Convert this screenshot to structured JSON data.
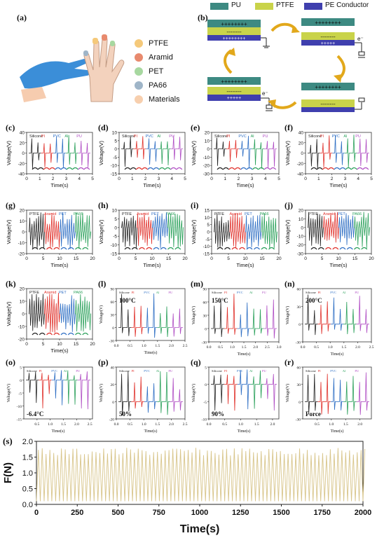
{
  "panel_letters": [
    "(a)",
    "(b)",
    "(c)",
    "(d)",
    "(e)",
    "(f)",
    "(g)",
    "(h)",
    "(i)",
    "(j)",
    "(k)",
    "(l)",
    "(m)",
    "(n)",
    "(o)",
    "(p)",
    "(q)",
    "(r)",
    "(s)"
  ],
  "legend_a": {
    "items": [
      {
        "label": "PTFE",
        "color": "#f5c97a"
      },
      {
        "label": "Aramid",
        "color": "#e88a6e"
      },
      {
        "label": "PET",
        "color": "#a7d8a0"
      },
      {
        "label": "PA66",
        "color": "#9fb5c8"
      },
      {
        "label": "Materials",
        "color": "#f7cfae"
      }
    ]
  },
  "legend_b": {
    "items": [
      {
        "label": "PU",
        "color": "#3d8a82"
      },
      {
        "label": "PTFE",
        "color": "#c9d34a"
      },
      {
        "label": "PE Conductor",
        "color": "#3f3fae"
      }
    ],
    "charges_top": "++++++++",
    "charges_mid": "--------",
    "charges_bot": "+++++",
    "electron": "e⁻"
  },
  "colors": {
    "black": "#222222",
    "red": "#e0302a",
    "blue": "#2f6fc4",
    "green": "#2aa05a",
    "purple": "#b04ec4",
    "force": "#d8c58a"
  },
  "common": {
    "xlabel": "Time(s)",
    "ylabel": "Voltage(V)",
    "fylabel": "F(N)",
    "fxlabel": "Time(s)"
  },
  "chart_data": [
    {
      "id": "c",
      "type": "line",
      "legend": [
        "Silicone",
        "PI",
        "PVC",
        "Al",
        "PU"
      ],
      "xticks": [
        "0",
        "1",
        "2",
        "3",
        "4",
        "5"
      ],
      "yticks": [
        "40",
        "20",
        "0",
        "-20",
        "-40"
      ],
      "xlim": [
        0,
        5
      ],
      "ylim": [
        -40,
        40
      ]
    },
    {
      "id": "d",
      "type": "line",
      "legend": [
        "Silicone",
        "PI",
        "PVC",
        "Al",
        "PU"
      ],
      "xticks": [
        "0",
        "1",
        "2",
        "3",
        "4",
        "5"
      ],
      "yticks": [
        "10",
        "5",
        "0",
        "-5",
        "-10",
        "-15"
      ],
      "xlim": [
        0,
        5
      ],
      "ylim": [
        -15,
        10
      ]
    },
    {
      "id": "e",
      "type": "line",
      "legend": [
        "Silicone",
        "PI",
        "PVC",
        "Al",
        "PU"
      ],
      "xticks": [
        "0",
        "1",
        "2",
        "3",
        "4",
        "5"
      ],
      "yticks": [
        "20",
        "10",
        "0",
        "-10",
        "-20",
        "-30"
      ],
      "xlim": [
        0,
        5
      ],
      "ylim": [
        -30,
        20
      ]
    },
    {
      "id": "f",
      "type": "line",
      "legend": [
        "Silicone",
        "PI",
        "PVC",
        "Al",
        "PU"
      ],
      "xticks": [
        "0",
        "1",
        "2",
        "3",
        "4",
        "5"
      ],
      "yticks": [
        "40",
        "20",
        "0",
        "-20",
        "-40"
      ],
      "xlim": [
        0,
        5
      ],
      "ylim": [
        -40,
        40
      ]
    },
    {
      "id": "g",
      "type": "line",
      "legend": [
        "PTFE",
        "Aramid",
        "PET",
        "PA66"
      ],
      "xticks": [
        "0",
        "5",
        "10",
        "15",
        "20"
      ],
      "yticks": [
        "20",
        "10",
        "0",
        "-10",
        "-20"
      ],
      "xlim": [
        0,
        20
      ],
      "ylim": [
        -20,
        20
      ]
    },
    {
      "id": "h",
      "type": "line",
      "legend": [
        "PTFE",
        "Aramid",
        "PET",
        "PA66"
      ],
      "xticks": [
        "0",
        "5",
        "10",
        "15",
        "20"
      ],
      "yticks": [
        "10",
        "5",
        "0",
        "-5",
        "-10",
        "-15"
      ],
      "xlim": [
        0,
        20
      ],
      "ylim": [
        -15,
        10
      ]
    },
    {
      "id": "i",
      "type": "line",
      "legend": [
        "PTFE",
        "Aramid",
        "PET",
        "PA66"
      ],
      "xticks": [
        "0",
        "5",
        "10",
        "15",
        "20"
      ],
      "yticks": [
        "15",
        "10",
        "5",
        "0",
        "-5",
        "-10",
        "-15"
      ],
      "xlim": [
        0,
        20
      ],
      "ylim": [
        -15,
        15
      ]
    },
    {
      "id": "j",
      "type": "line",
      "legend": [
        "PTFE",
        "Aramid",
        "PET",
        "PA66"
      ],
      "xticks": [
        "0",
        "5",
        "10",
        "15",
        "20"
      ],
      "yticks": [
        "20",
        "10",
        "0",
        "-10",
        "-20",
        "-30"
      ],
      "xlim": [
        0,
        20
      ],
      "ylim": [
        -30,
        20
      ]
    },
    {
      "id": "k",
      "type": "line",
      "legend": [
        "PTFE",
        "Aramid",
        "PET",
        "PA66"
      ],
      "xticks": [
        "0",
        "5",
        "10",
        "15",
        "20"
      ],
      "yticks": [
        "20",
        "10",
        "0",
        "-10",
        "-20"
      ],
      "xlim": [
        0,
        20
      ],
      "ylim": [
        -20,
        20
      ]
    },
    {
      "id": "l",
      "type": "line",
      "annotation": "100°C",
      "legend": [
        "Silicone",
        "PI",
        "PVC",
        "Al",
        "PU"
      ],
      "xticks": [
        "0.0",
        "0.5",
        "1.0",
        "1.5",
        "2.0",
        "2.5"
      ],
      "yticks": [
        "90",
        "60",
        "30",
        "0",
        "-30"
      ],
      "xlim": [
        0,
        2.5
      ],
      "ylim": [
        -30,
        90
      ]
    },
    {
      "id": "m",
      "type": "line",
      "annotation": "150°C",
      "legend": [
        "Silicone",
        "PI",
        "PVC",
        "Al",
        "PU"
      ],
      "xticks": [
        "0.0",
        "0.5",
        "1.0",
        "1.5",
        "2.0",
        "2.5",
        "3.0"
      ],
      "yticks": [
        "90",
        "60",
        "30",
        "0",
        "-30"
      ],
      "xlim": [
        0,
        3
      ],
      "ylim": [
        -30,
        90
      ]
    },
    {
      "id": "n",
      "type": "line",
      "annotation": "200°C",
      "legend": [
        "Silicone",
        "PI",
        "PVC",
        "Al",
        "PU"
      ],
      "xticks": [
        "0.0",
        "0.5",
        "1.0",
        "1.5",
        "2.0",
        "2.5"
      ],
      "yticks": [
        "60",
        "30",
        "0",
        "-30"
      ],
      "xlim": [
        0,
        2.5
      ],
      "ylim": [
        -30,
        60
      ]
    },
    {
      "id": "o",
      "type": "line",
      "annotation": "-6.4°C",
      "legend": [
        "Silicone",
        "PI",
        "PVC",
        "Al",
        "PU"
      ],
      "xticks": [
        "0.5",
        "1.0",
        "1.5",
        "2.0",
        "2.5"
      ],
      "yticks": [
        "5",
        "0",
        "-5",
        "-10",
        "-15"
      ],
      "xlim": [
        0,
        2.6
      ],
      "ylim": [
        -15,
        5
      ]
    },
    {
      "id": "p",
      "type": "line",
      "annotation": "50%",
      "legend": [
        "Silicone",
        "PI",
        "PVC",
        "Al",
        "PU"
      ],
      "xticks": [
        "0.0",
        "0.5",
        "1.0",
        "1.5",
        "2.0",
        "2.5"
      ],
      "yticks": [
        "40",
        "20",
        "0",
        "-20"
      ],
      "xlim": [
        0,
        2.5
      ],
      "ylim": [
        -20,
        40
      ]
    },
    {
      "id": "q",
      "type": "line",
      "annotation": "90%",
      "legend": [
        "Silicone",
        "PI",
        "PVC",
        "Al",
        "PU"
      ],
      "xticks": [
        "0.0",
        "0.5",
        "1.0",
        "1.5",
        "2.0"
      ],
      "yticks": [
        "5",
        "0",
        "-5",
        "-10"
      ],
      "xlim": [
        0,
        2.2
      ],
      "ylim": [
        -10,
        5
      ]
    },
    {
      "id": "r",
      "type": "line",
      "annotation": "Force",
      "legend": [
        "Silicone",
        "PI",
        "PVC",
        "Al",
        "PU"
      ],
      "xticks": [
        "0.5",
        "1.0",
        "1.5",
        "2.0"
      ],
      "yticks": [
        "60",
        "30",
        "0",
        "-30"
      ],
      "xlim": [
        0,
        2.4
      ],
      "ylim": [
        -30,
        60
      ]
    },
    {
      "id": "s",
      "type": "line",
      "xticks": [
        "0",
        "250",
        "500",
        "750",
        "1000",
        "1250",
        "1500",
        "1750",
        "2000"
      ],
      "yticks": [
        "2.0",
        "1.5",
        "1.0",
        "0.5",
        "0.0"
      ],
      "xlim": [
        0,
        2000
      ],
      "ylim": [
        0,
        2
      ],
      "series": [
        {
          "values_range": [
            0.1,
            1.8
          ],
          "cycles": 85
        }
      ]
    }
  ]
}
